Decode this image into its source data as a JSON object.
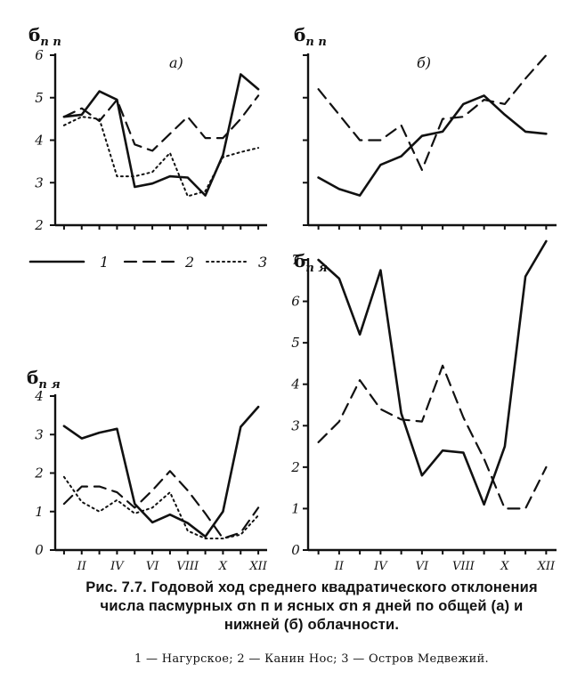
{
  "figure": {
    "caption": "Рис. 7.7. Годовой ход среднего квадратического отклонения числа пасмурных σn п и ясных σn я дней по общей (а) и нижней (б) облачности.",
    "legend_caption": "1 — Нагурское; 2 — Канин Нос; 3 — Остров Медвежий."
  },
  "legend": {
    "items": [
      {
        "label": "1",
        "dash": "solid"
      },
      {
        "label": "2",
        "dash": "dashed"
      },
      {
        "label": "3",
        "dash": "dotted"
      }
    ]
  },
  "chart_data": [
    {
      "id": "top-left",
      "type": "line",
      "panel_label": "а)",
      "ylabel_main": "б",
      "ylabel_sub": "n п",
      "y_ticks": [
        "2",
        "3",
        "4",
        "5",
        "6"
      ],
      "ylim": [
        2,
        6
      ],
      "xlim": [
        0.5,
        12.5
      ],
      "x_tick_labels": [],
      "series": [
        {
          "label": "1",
          "dash": "solid",
          "x": [
            1,
            2,
            3,
            4,
            5,
            6,
            7,
            8,
            9,
            10,
            11,
            12
          ],
          "y": [
            4.55,
            4.6,
            5.15,
            4.95,
            2.9,
            2.98,
            3.15,
            3.12,
            2.7,
            3.65,
            5.55,
            5.2
          ]
        },
        {
          "label": "2",
          "dash": "dashed",
          "x": [
            1,
            2,
            3,
            4,
            5,
            6,
            7,
            8,
            9,
            10,
            11,
            12
          ],
          "y": [
            4.55,
            4.75,
            4.45,
            4.95,
            3.9,
            3.75,
            4.15,
            4.55,
            4.05,
            4.05,
            4.5,
            5.05
          ]
        },
        {
          "label": "3",
          "dash": "dotted",
          "x": [
            1,
            2,
            3,
            4,
            5,
            6,
            7,
            8,
            9,
            10,
            11,
            12
          ],
          "y": [
            4.35,
            4.55,
            4.5,
            3.15,
            3.15,
            3.25,
            3.7,
            2.68,
            2.8,
            3.6,
            3.72,
            3.82
          ]
        }
      ]
    },
    {
      "id": "top-right",
      "type": "line",
      "panel_label": "б)",
      "ylabel_main": "б",
      "ylabel_sub": "n п",
      "y_ticks": [],
      "ylim": [
        2,
        6
      ],
      "xlim": [
        0.5,
        12.5
      ],
      "x_tick_labels": [],
      "series": [
        {
          "label": "1",
          "dash": "solid",
          "x": [
            1,
            2,
            3,
            4,
            5,
            6,
            7,
            8,
            9,
            10,
            11,
            12
          ],
          "y": [
            3.12,
            2.85,
            2.7,
            3.42,
            3.62,
            4.1,
            4.2,
            4.85,
            5.05,
            4.6,
            4.2,
            4.15
          ]
        },
        {
          "label": "2",
          "dash": "dashed",
          "x": [
            1,
            2,
            3,
            4,
            5,
            6,
            7,
            8,
            9,
            10,
            11,
            12
          ],
          "y": [
            5.2,
            4.6,
            4.0,
            4.0,
            4.35,
            3.3,
            4.5,
            4.55,
            4.95,
            4.85,
            5.45,
            6.0
          ]
        }
      ]
    },
    {
      "id": "bottom-left",
      "type": "line",
      "panel_label": "",
      "ylabel_main": "б",
      "ylabel_sub": "n я",
      "y_ticks": [
        "0",
        "1",
        "2",
        "3",
        "4"
      ],
      "ylim": [
        0,
        4
      ],
      "xlim": [
        0.5,
        12.5
      ],
      "x_tick_labels": [
        "II",
        "IV",
        "VI",
        "VIII",
        "X",
        "XII"
      ],
      "series": [
        {
          "label": "1",
          "dash": "solid",
          "x": [
            1,
            2,
            3,
            4,
            5,
            6,
            7,
            8,
            9,
            10,
            11,
            12
          ],
          "y": [
            3.22,
            2.9,
            3.05,
            3.15,
            1.2,
            0.72,
            0.92,
            0.7,
            0.35,
            1.0,
            3.2,
            3.72
          ]
        },
        {
          "label": "2",
          "dash": "dashed",
          "x": [
            1,
            2,
            3,
            4,
            5,
            6,
            7,
            8,
            9,
            10,
            11,
            12
          ],
          "y": [
            1.2,
            1.65,
            1.65,
            1.5,
            1.1,
            1.55,
            2.05,
            1.55,
            0.95,
            0.3,
            0.45,
            1.1
          ]
        },
        {
          "label": "3",
          "dash": "dotted",
          "x": [
            1,
            2,
            3,
            4,
            5,
            6,
            7,
            8,
            9,
            10,
            11,
            12
          ],
          "y": [
            1.9,
            1.25,
            1.0,
            1.3,
            0.95,
            1.1,
            1.5,
            0.5,
            0.3,
            0.3,
            0.4,
            0.9
          ]
        }
      ]
    },
    {
      "id": "bottom-right",
      "type": "line",
      "panel_label": "",
      "ylabel_main": "б",
      "ylabel_sub": "n я",
      "y_ticks": [
        "0",
        "1",
        "2",
        "3",
        "4",
        "5",
        "6",
        "7"
      ],
      "ylim": [
        0,
        7
      ],
      "xlim": [
        0.5,
        12.5
      ],
      "x_tick_labels": [
        "II",
        "IV",
        "VI",
        "VIII",
        "X",
        "XII"
      ],
      "series": [
        {
          "label": "1",
          "dash": "solid",
          "x": [
            1,
            2,
            3,
            4,
            5,
            6,
            7,
            8,
            9,
            10,
            11,
            12
          ],
          "y": [
            7.0,
            6.55,
            5.2,
            6.75,
            3.3,
            1.8,
            2.4,
            2.35,
            1.1,
            2.5,
            6.6,
            7.45
          ]
        },
        {
          "label": "2",
          "dash": "dashed",
          "x": [
            1,
            2,
            3,
            4,
            5,
            6,
            7,
            8,
            9,
            10,
            11,
            12
          ],
          "y": [
            2.6,
            3.1,
            4.1,
            3.4,
            3.15,
            3.1,
            4.45,
            3.2,
            2.2,
            1.0,
            1.0,
            2.0
          ]
        }
      ]
    }
  ]
}
